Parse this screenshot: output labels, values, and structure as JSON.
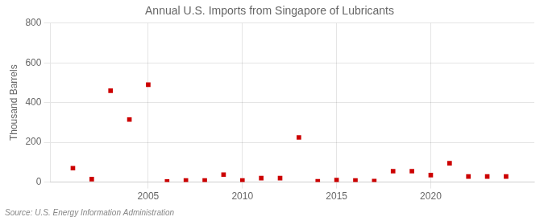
{
  "chart_data": {
    "type": "scatter",
    "title": "Annual U.S. Imports from Singapore of Lubricants",
    "ylabel": "Thousand Barrels",
    "source": "Source: U.S. Energy Information Administration",
    "x": [
      2001,
      2002,
      2003,
      2004,
      2005,
      2006,
      2007,
      2008,
      2009,
      2010,
      2011,
      2012,
      2013,
      2014,
      2015,
      2016,
      2017,
      2018,
      2019,
      2020,
      2021,
      2022,
      2023,
      2024
    ],
    "values": [
      70,
      15,
      460,
      315,
      490,
      3,
      8,
      8,
      38,
      8,
      20,
      20,
      225,
      4,
      10,
      8,
      5,
      55,
      55,
      35,
      95,
      28,
      28,
      28
    ],
    "color": "#cc0000",
    "marker": "square",
    "xlim": [
      1999.8,
      2025.5
    ],
    "xticks": [
      2005,
      2010,
      2015,
      2020
    ],
    "ylim": [
      0,
      800
    ],
    "yticks": [
      0,
      200,
      400,
      600,
      800
    ],
    "grid": true
  }
}
